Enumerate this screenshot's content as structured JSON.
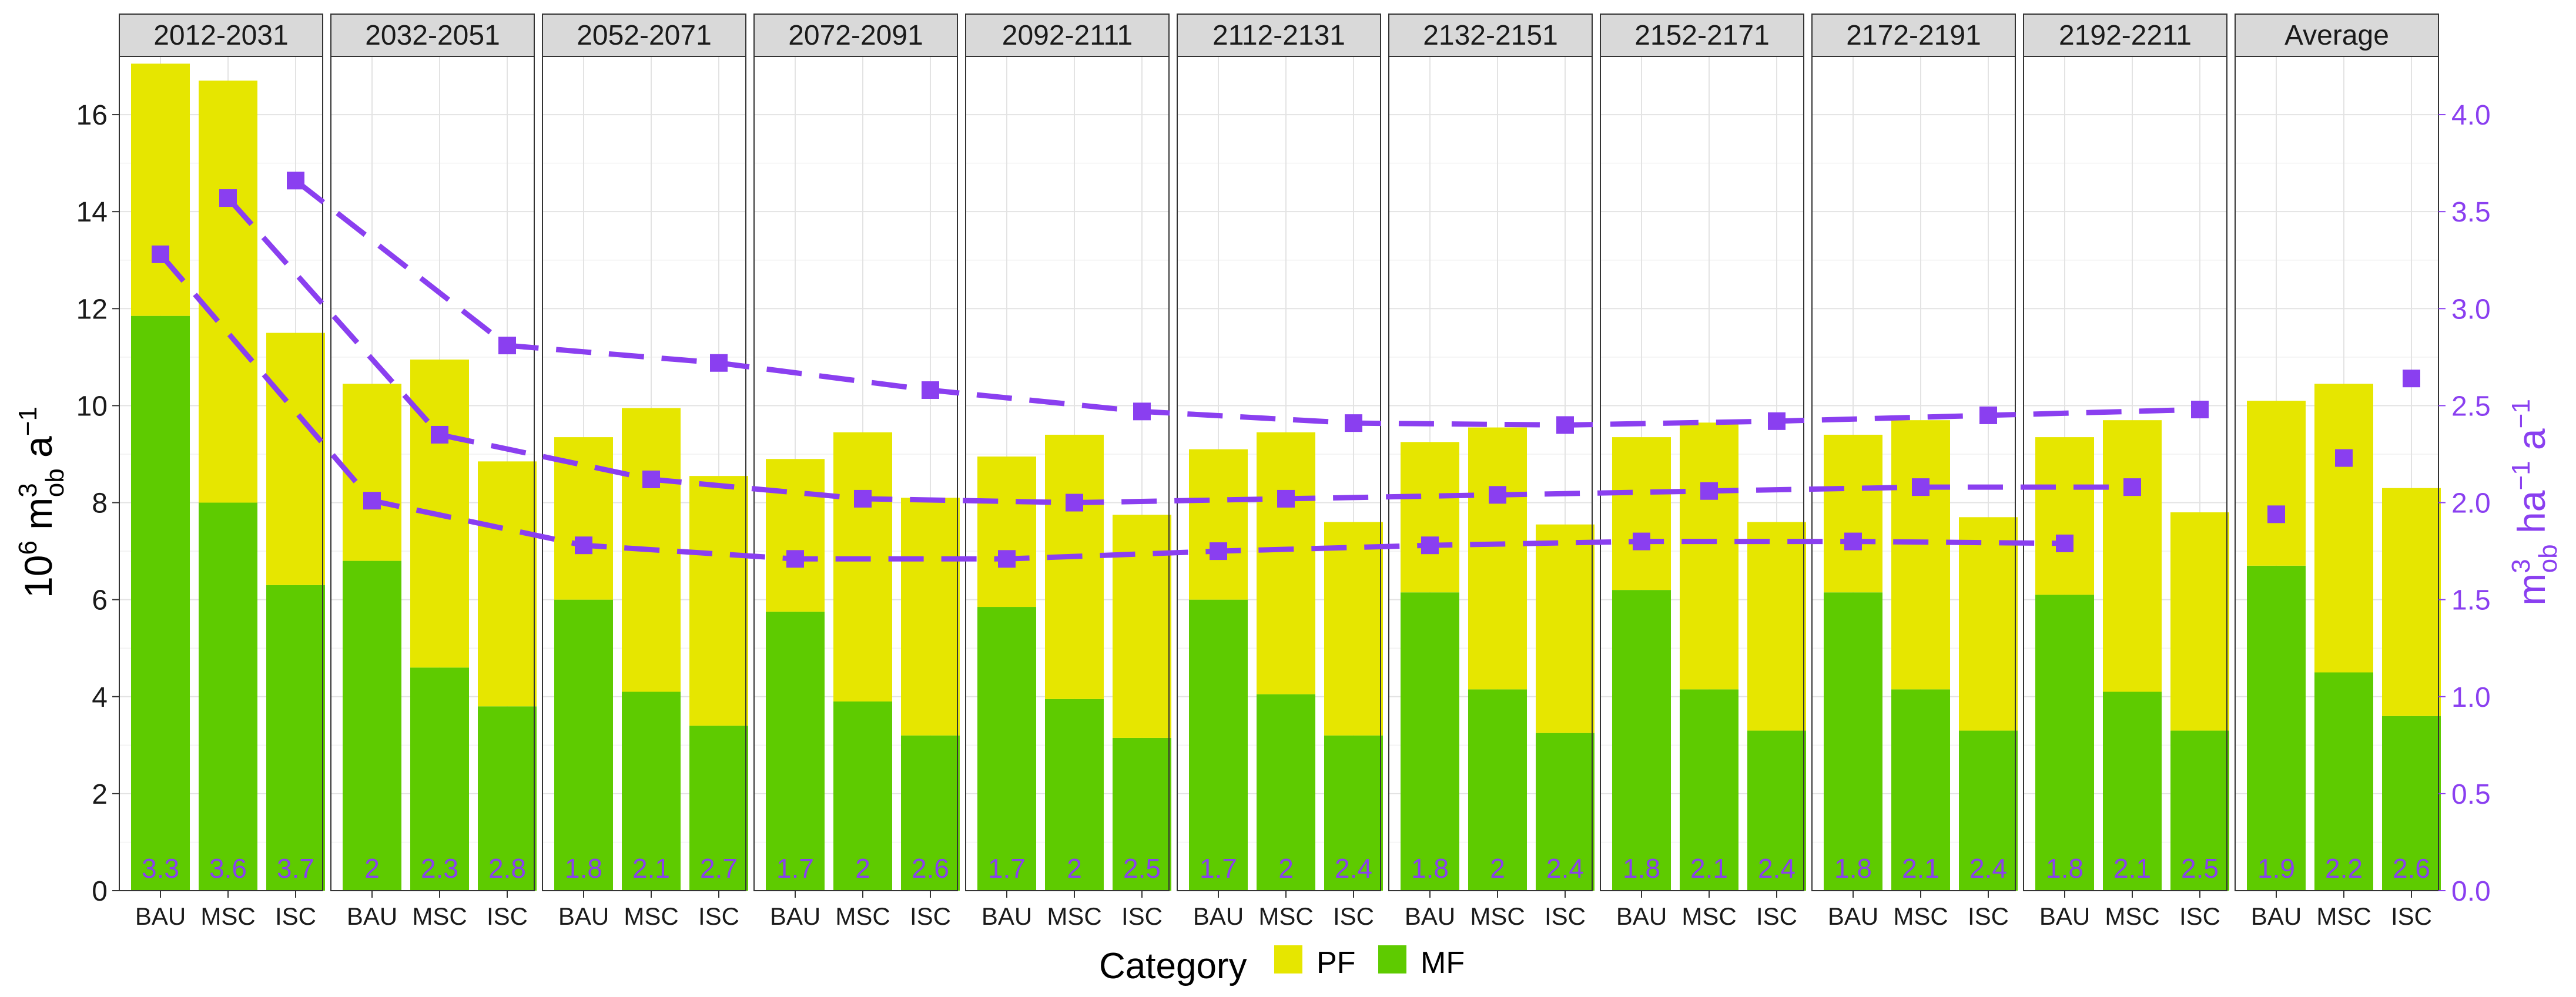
{
  "chart_data": {
    "type": "bar",
    "facets": [
      "2012-2031",
      "2032-2051",
      "2052-2071",
      "2072-2091",
      "2092-2111",
      "2112-2131",
      "2132-2151",
      "2152-2171",
      "2172-2191",
      "2192-2211",
      "Average"
    ],
    "categories": [
      "BAU",
      "MSC",
      "ISC"
    ],
    "stack_series": [
      {
        "name": "MF",
        "color": "#5ecb00",
        "values": [
          [
            11.85,
            8.0,
            6.3
          ],
          [
            6.8,
            4.6,
            3.8
          ],
          [
            6.0,
            4.1,
            3.4
          ],
          [
            5.75,
            3.9,
            3.2
          ],
          [
            5.85,
            3.95,
            3.15
          ],
          [
            6.0,
            4.05,
            3.2
          ],
          [
            6.15,
            4.15,
            3.25
          ],
          [
            6.2,
            4.15,
            3.3
          ],
          [
            6.15,
            4.15,
            3.3
          ],
          [
            6.1,
            4.1,
            3.3
          ],
          [
            6.7,
            4.5,
            3.6
          ]
        ]
      },
      {
        "name": "PF",
        "color": "#e6e600",
        "values": [
          [
            5.2,
            8.7,
            5.2
          ],
          [
            3.65,
            6.35,
            5.05
          ],
          [
            3.35,
            5.85,
            5.15
          ],
          [
            3.15,
            5.55,
            4.9
          ],
          [
            3.1,
            5.45,
            4.6
          ],
          [
            3.1,
            5.4,
            4.4
          ],
          [
            3.1,
            5.4,
            4.3
          ],
          [
            3.15,
            5.5,
            4.3
          ],
          [
            3.25,
            5.55,
            4.4
          ],
          [
            3.25,
            5.6,
            4.5
          ],
          [
            3.4,
            5.95,
            4.7
          ]
        ]
      }
    ],
    "line_series_color": "#8a3ff0",
    "line_series": [
      {
        "category": "BAU",
        "values": [
          3.28,
          2.01,
          1.78,
          1.71,
          1.71,
          1.75,
          1.78,
          1.8,
          1.8,
          1.79
        ]
      },
      {
        "category": "MSC",
        "values": [
          3.57,
          2.35,
          2.12,
          2.02,
          2.0,
          2.02,
          2.04,
          2.06,
          2.08,
          2.08
        ]
      },
      {
        "category": "ISC",
        "values": [
          3.66,
          2.81,
          2.72,
          2.58,
          2.47,
          2.41,
          2.4,
          2.42,
          2.45,
          2.48
        ]
      }
    ],
    "average_points": [
      1.94,
      2.23,
      2.64
    ],
    "bar_labels": [
      [
        "3.3",
        "3.6",
        "3.7"
      ],
      [
        "2",
        "2.3",
        "2.8"
      ],
      [
        "1.8",
        "2.1",
        "2.7"
      ],
      [
        "1.7",
        "2",
        "2.6"
      ],
      [
        "1.7",
        "2",
        "2.5"
      ],
      [
        "1.7",
        "2",
        "2.4"
      ],
      [
        "1.8",
        "2",
        "2.4"
      ],
      [
        "1.8",
        "2.1",
        "2.4"
      ],
      [
        "1.8",
        "2.1",
        "2.4"
      ],
      [
        "1.8",
        "2.1",
        "2.5"
      ],
      [
        "1.9",
        "2.2",
        "2.6"
      ]
    ],
    "ylim": [
      0,
      17.2
    ],
    "y_ticks": [
      "0",
      "2",
      "4",
      "6",
      "8",
      "10",
      "12",
      "14",
      "16"
    ],
    "y2lim": [
      0,
      4.3
    ],
    "y2_ticks": [
      "0.0",
      "0.5",
      "1.0",
      "1.5",
      "2.0",
      "2.5",
      "3.0",
      "3.5",
      "4.0"
    ],
    "ylabel": {
      "base": "10",
      "exp": "6",
      "unit": "m",
      "unit_exp": "3",
      "sub": "ob",
      "tail": "a",
      "tail_exp": "−1"
    },
    "y2label": {
      "unit": "m",
      "unit_exp": "3",
      "sub": "ob",
      "mid": "ha",
      "mid_exp": "−1",
      "tail": "a",
      "tail_exp": "−1"
    },
    "legend": {
      "title": "Category",
      "items": [
        {
          "label": "PF",
          "color": "#e6e600"
        },
        {
          "label": "MF",
          "color": "#5ecb00"
        }
      ],
      "position": "bottom"
    },
    "grid": true
  }
}
